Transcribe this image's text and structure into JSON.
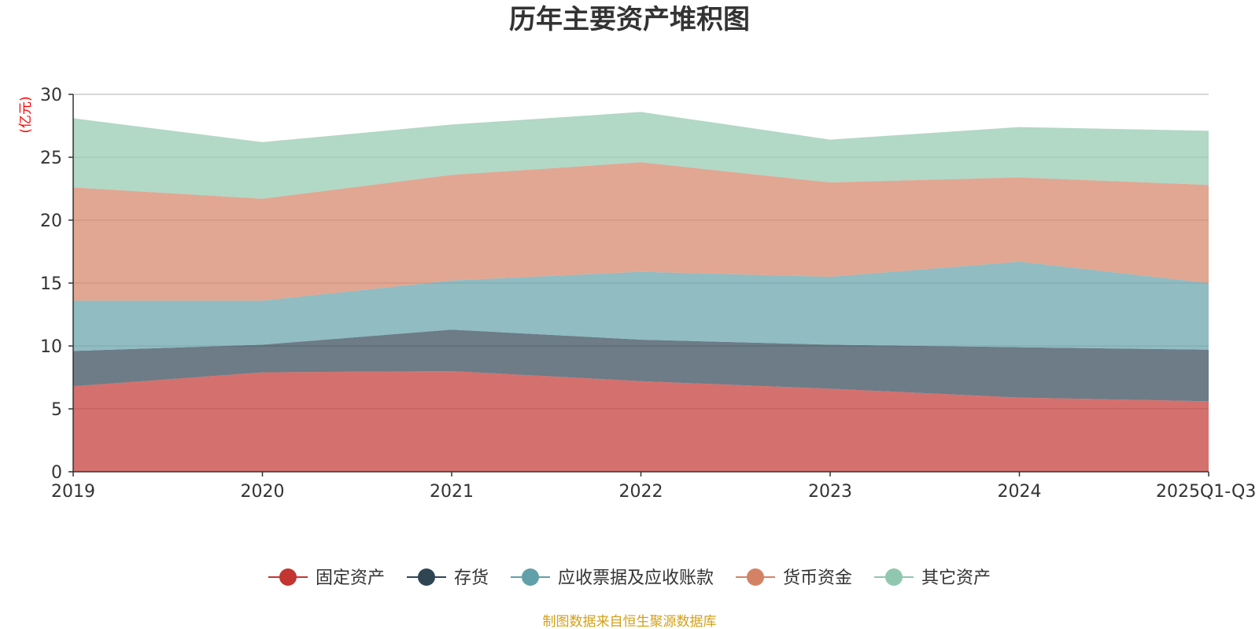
{
  "chart_data": {
    "type": "area",
    "stacked": true,
    "title": "历年主要资产堆积图",
    "unit": "(亿元)",
    "categories": [
      "2019",
      "2020",
      "2021",
      "2022",
      "2023",
      "2024",
      "2025Q1-Q3"
    ],
    "ylim": [
      0,
      30
    ],
    "yticks": [
      0,
      5,
      10,
      15,
      20,
      25,
      30
    ],
    "grid": true,
    "legend_position": "bottom",
    "series": [
      {
        "name": "固定资产",
        "color": "#c23531",
        "values": [
          6.8,
          7.9,
          8.0,
          7.2,
          6.6,
          5.9,
          5.6
        ]
      },
      {
        "name": "存货",
        "color": "#2f4554",
        "values": [
          2.8,
          2.2,
          3.3,
          3.3,
          3.5,
          4.0,
          4.1
        ]
      },
      {
        "name": "应收票据及应收账款",
        "color": "#61a0a8",
        "values": [
          4.0,
          3.5,
          3.9,
          5.4,
          5.4,
          6.8,
          5.3
        ]
      },
      {
        "name": "货币资金",
        "color": "#d48265",
        "values": [
          9.0,
          8.1,
          8.4,
          8.7,
          7.5,
          6.7,
          7.8
        ]
      },
      {
        "name": "其它资产",
        "color": "#91c7ae",
        "values": [
          5.5,
          4.5,
          4.0,
          4.0,
          3.4,
          4.0,
          4.3
        ]
      }
    ]
  },
  "source": {
    "text": "制图数据来自恒生聚源数据库",
    "color": "#d4a017"
  },
  "unit_color": "#ff0000"
}
